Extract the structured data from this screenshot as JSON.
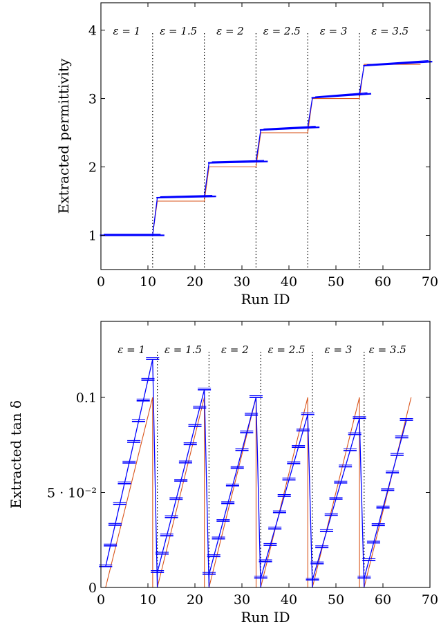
{
  "chart_data": [
    {
      "type": "line",
      "xlabel": "Run ID",
      "ylabel": "Extracted permittivity",
      "xlim": [
        0,
        70
      ],
      "ylim": [
        0.5,
        4.4
      ],
      "xticks": [
        0,
        10,
        20,
        30,
        40,
        50,
        60,
        70
      ],
      "yticks": [
        1,
        2,
        3,
        4
      ],
      "ytick_labels": [
        "1",
        "2",
        "3",
        "4"
      ],
      "grid": false,
      "regions": [
        {
          "label": "ε = 1",
          "x_start": 0,
          "x_end": 11
        },
        {
          "label": "ε = 1.5",
          "x_start": 11,
          "x_end": 22
        },
        {
          "label": "ε = 2",
          "x_start": 22,
          "x_end": 33
        },
        {
          "label": "ε = 2.5",
          "x_start": 33,
          "x_end": 44
        },
        {
          "label": "ε = 3",
          "x_start": 44,
          "x_end": 55
        },
        {
          "label": "ε = 3.5",
          "x_start": 55,
          "x_end": 68
        }
      ],
      "series": [
        {
          "color": "#d95319",
          "x": [
            0,
            11,
            12,
            22,
            23,
            33,
            34,
            44,
            45,
            55,
            56,
            68
          ],
          "y": [
            1.0,
            1.0,
            1.5,
            1.5,
            2.0,
            2.0,
            2.5,
            2.5,
            3.0,
            3.0,
            3.5,
            3.5
          ]
        },
        {
          "color": "#0000ff",
          "x": [
            0,
            11,
            12,
            22,
            23,
            33,
            34,
            44,
            45,
            55,
            56,
            68
          ],
          "y": [
            1.0,
            1.0,
            1.55,
            1.57,
            2.06,
            2.08,
            2.54,
            2.58,
            3.01,
            3.07,
            3.48,
            3.54
          ]
        }
      ]
    },
    {
      "type": "line",
      "xlabel": "Run ID",
      "ylabel": "Extracted tan δ",
      "xlim": [
        0,
        70
      ],
      "ylim": [
        0,
        0.14
      ],
      "xticks": [
        0,
        10,
        20,
        30,
        40,
        50,
        60,
        70
      ],
      "yticks": [
        0,
        0.05,
        0.1
      ],
      "ytick_labels": [
        "0",
        "5 · 10⁻²",
        "0.1"
      ],
      "grid": false,
      "regions": [
        {
          "label": "ε = 1",
          "x_start": 1,
          "x_end": 12
        },
        {
          "label": "ε = 1.5",
          "x_start": 12,
          "x_end": 23
        },
        {
          "label": "ε = 2",
          "x_start": 23,
          "x_end": 34
        },
        {
          "label": "ε = 2.5",
          "x_start": 34,
          "x_end": 45
        },
        {
          "label": "ε = 3",
          "x_start": 45,
          "x_end": 56
        },
        {
          "label": "ε = 3.5",
          "x_start": 56,
          "x_end": 66
        }
      ],
      "series": [
        {
          "color": "#d95319",
          "x": [
            1,
            11,
            11.01,
            12,
            22,
            22.01,
            23,
            33,
            33.01,
            34,
            44,
            44.01,
            45,
            55,
            55.01,
            56,
            66
          ],
          "y": [
            0,
            0.1,
            0,
            0,
            0.1,
            0,
            0,
            0.1,
            0,
            0,
            0.1,
            0,
            0,
            0.1,
            0,
            0,
            0.1
          ]
        },
        {
          "color": "#0000ff",
          "x": [
            1,
            11,
            12,
            12.01,
            22,
            23,
            23.01,
            33,
            34,
            34.01,
            44,
            45,
            45.01,
            55,
            56,
            56.01,
            65
          ],
          "y": [
            0.011,
            0.12,
            0,
            0.008,
            0.104,
            0,
            0.007,
            0.1,
            0,
            0.005,
            0.091,
            0,
            0.004,
            0.089,
            0,
            0.005,
            0.088
          ]
        }
      ]
    }
  ]
}
